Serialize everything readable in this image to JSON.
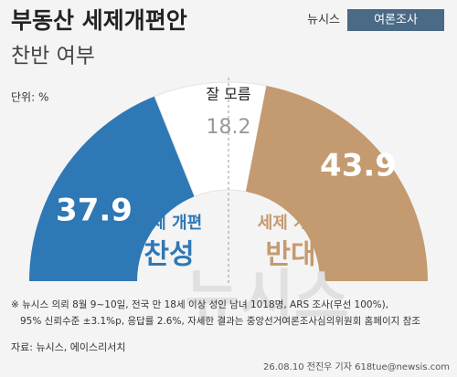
{
  "header": {
    "title": "부동산 세제개편안",
    "subtitle": "찬반 여부",
    "brand": "뉴시스",
    "section": "여론조사"
  },
  "chart_data": {
    "type": "semi-donut",
    "unit": "단위: %",
    "label_prefix": "세제 개편",
    "categories": [
      "찬성",
      "잘 모름",
      "반대"
    ],
    "values": [
      37.9,
      18.2,
      43.9
    ],
    "colors": [
      "#2e78b5",
      "#ffffff",
      "#c49a70"
    ]
  },
  "footnote": [
    "※ 뉴시스 의뢰 8월 9~10일, 전국 만 18세 이상 성인 남녀 1018명, ARS 조사(무선 100%),",
    "95% 신뢰수준 ±3.1%p, 응답률 2.6%, 자세한 결과는 중앙선거여론조사심의위원회 홈페이지 참조"
  ],
  "source": "자료: 뉴시스, 에이스리서치",
  "watermark": "뉴시스",
  "credit": "26.08.10 전진우 기자 618tue@newsis.com"
}
